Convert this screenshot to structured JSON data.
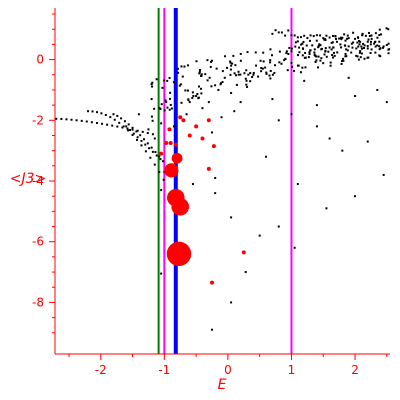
{
  "chart_data": {
    "type": "scatter",
    "xlabel": "E",
    "ylabel": "<J3>",
    "xlim": [
      -2.72,
      2.55
    ],
    "ylim": [
      -9.7,
      1.7
    ],
    "x_ticks": [
      -2,
      -1,
      0,
      1,
      2
    ],
    "y_ticks": [
      0,
      -2,
      -4,
      -6,
      -8
    ],
    "x_tick_labels": [
      "-2",
      "-1",
      "0",
      "1",
      "2"
    ],
    "y_tick_labels": [
      "0",
      "-2",
      "-4",
      "-6",
      "-8"
    ],
    "grid": false,
    "colors": {
      "axis": "#ff0000",
      "dots": "#000000",
      "highlight": "#ff0000",
      "green_line": "#008000",
      "magenta_line": "#ff00ff",
      "blue_line": "#0000ff"
    },
    "vertical_lines": [
      {
        "x": -1.09,
        "color": "#008000"
      },
      {
        "x": -1.0,
        "color": "#ff00ff"
      },
      {
        "x": -0.82,
        "color": "#0000ff",
        "emphasis": "thick"
      },
      {
        "x": 1.0,
        "color": "#ff00ff"
      }
    ],
    "highlighted_points": [
      {
        "x": -0.89,
        "y": -3.65,
        "size": 3
      },
      {
        "x": -0.8,
        "y": -3.25,
        "size": 2
      },
      {
        "x": -0.82,
        "y": -4.55,
        "size": 4
      },
      {
        "x": -0.75,
        "y": -4.85,
        "size": 4
      },
      {
        "x": -0.77,
        "y": -6.4,
        "size": 6
      },
      {
        "x": -0.97,
        "y": -2.75,
        "size": 1
      },
      {
        "x": -0.9,
        "y": -2.75,
        "size": 1
      },
      {
        "x": -0.82,
        "y": -2.8,
        "size": 1
      },
      {
        "x": -1.05,
        "y": -3.1,
        "size": 1
      },
      {
        "x": -0.6,
        "y": -2.5,
        "size": 1
      },
      {
        "x": -0.5,
        "y": -2.2,
        "size": 1
      },
      {
        "x": -0.3,
        "y": -2.0,
        "size": 1
      },
      {
        "x": -0.4,
        "y": -2.6,
        "size": 1
      },
      {
        "x": -0.3,
        "y": -3.6,
        "size": 1
      },
      {
        "x": -0.92,
        "y": -2.3,
        "size": 1
      },
      {
        "x": -0.7,
        "y": -2.0,
        "size": 1
      },
      {
        "x": -0.75,
        "y": -1.9,
        "size": 1
      },
      {
        "x": -0.25,
        "y": -7.35,
        "size": 1
      },
      {
        "x": 0.25,
        "y": -6.35,
        "size": 1
      },
      {
        "x": -0.22,
        "y": -2.85,
        "size": 1
      }
    ],
    "scattered_points": [
      [
        -1.05,
        -2.1
      ],
      [
        -1.2,
        -1.3
      ],
      [
        -1.4,
        -1.8
      ],
      [
        -1.25,
        -2.3
      ],
      [
        -1.15,
        -2.6
      ],
      [
        -0.85,
        -2.2
      ],
      [
        -0.65,
        -1.8
      ],
      [
        -0.6,
        -1.4
      ],
      [
        -0.5,
        -1.2
      ],
      [
        -0.4,
        -1.6
      ],
      [
        -0.3,
        -1.4
      ],
      [
        -0.25,
        -2.4
      ],
      [
        -0.1,
        -1.9
      ],
      [
        0.05,
        -1.1
      ],
      [
        0.1,
        -1.7
      ],
      [
        0.2,
        -1.4
      ],
      [
        0.3,
        -0.9
      ],
      [
        -0.15,
        -1.0
      ],
      [
        -0.05,
        -0.6
      ],
      [
        0.4,
        -0.5
      ],
      [
        0.55,
        -0.3
      ],
      [
        0.7,
        -1.3
      ],
      [
        0.8,
        -2.0
      ],
      [
        1.0,
        -1.8
      ],
      [
        1.2,
        -0.7
      ],
      [
        1.4,
        -2.2
      ],
      [
        1.6,
        -2.6
      ],
      [
        1.8,
        -3.0
      ],
      [
        2.0,
        -1.2
      ],
      [
        2.2,
        -2.7
      ],
      [
        2.35,
        -1.0
      ],
      [
        2.5,
        -1.4
      ],
      [
        1.1,
        -4.1
      ],
      [
        0.8,
        -5.5
      ],
      [
        1.55,
        -4.9
      ],
      [
        2.0,
        -4.5
      ],
      [
        2.45,
        -3.8
      ],
      [
        0.6,
        -3.2
      ],
      [
        -0.2,
        -4.4
      ],
      [
        0.05,
        -5.2
      ],
      [
        0.5,
        -5.8
      ],
      [
        1.05,
        -6.2
      ],
      [
        0.28,
        -7.0
      ],
      [
        0.05,
        -8.0
      ],
      [
        -0.25,
        -8.9
      ],
      [
        -1.05,
        -7.05
      ],
      [
        -0.2,
        -3.9
      ],
      [
        -0.55,
        -4.1
      ],
      [
        1.9,
        -0.6
      ],
      [
        1.4,
        -1.5
      ],
      [
        -1.05,
        -4.3
      ],
      [
        -1.0,
        -3.7
      ]
    ]
  }
}
